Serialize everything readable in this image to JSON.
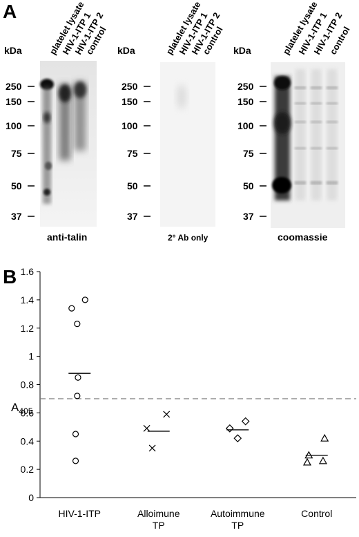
{
  "panel_a": {
    "letter": "A",
    "kda_label": "kDa",
    "lane_labels": [
      "platelet lysate",
      "HIV-1-ITP 1",
      "HIV-1-ITP 2",
      "control"
    ],
    "markers": [
      "250",
      "150",
      "100",
      "75",
      "50",
      "37"
    ],
    "blots": [
      {
        "caption": "anti-talin"
      },
      {
        "caption": "2° Ab only"
      },
      {
        "caption": "coomassie"
      }
    ]
  },
  "panel_b": {
    "letter": "B"
  },
  "chart_data": {
    "type": "scatter",
    "ylabel": "A",
    "ylabel_sub": "405",
    "ylim": [
      0,
      1.6
    ],
    "yticks": [
      "0",
      "0.2",
      "0.4",
      "0.6",
      "0.8",
      "1",
      "1.2",
      "1.4",
      "1.6"
    ],
    "categories": [
      "HIV-1-ITP",
      "Alloimune\nTP",
      "Autoimmune\nTP",
      "Control"
    ],
    "threshold": 0.7,
    "series": [
      {
        "category": "HIV-1-ITP",
        "marker": "circle",
        "points": [
          [
            -0.1,
            1.34
          ],
          [
            0.07,
            1.4
          ],
          [
            -0.03,
            1.23
          ],
          [
            -0.02,
            0.85
          ],
          [
            -0.03,
            0.72
          ],
          [
            -0.05,
            0.45
          ],
          [
            -0.05,
            0.26
          ]
        ],
        "mean": 0.88
      },
      {
        "category": "Alloimune\nTP",
        "marker": "x",
        "points": [
          [
            -0.15,
            0.49
          ],
          [
            0.1,
            0.59
          ],
          [
            -0.08,
            0.35
          ]
        ],
        "mean": 0.47
      },
      {
        "category": "Autoimmune\nTP",
        "marker": "diamond",
        "points": [
          [
            -0.1,
            0.49
          ],
          [
            0.1,
            0.54
          ],
          [
            0.0,
            0.42
          ]
        ],
        "mean": 0.48
      },
      {
        "category": "Control",
        "marker": "triangle",
        "points": [
          [
            0.1,
            0.42
          ],
          [
            -0.1,
            0.3
          ],
          [
            -0.12,
            0.25
          ],
          [
            0.08,
            0.26
          ]
        ],
        "mean": 0.3
      }
    ]
  }
}
